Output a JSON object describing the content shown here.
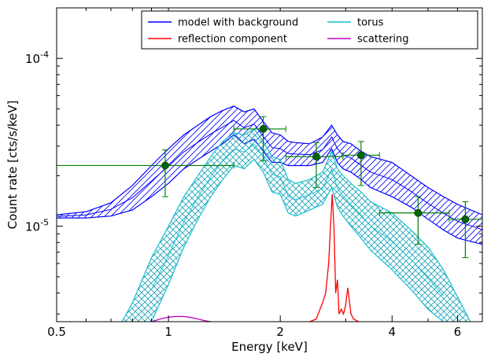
{
  "chart_data": {
    "type": "line",
    "xlabel": "Energy [keV]",
    "ylabel": "Count rate [cts/s/keV]",
    "x_scale": "log",
    "y_scale": "log",
    "xlim": [
      0.5,
      7.0
    ],
    "ylim": [
      2.7e-06,
      0.0002
    ],
    "x_ticks": [
      {
        "value": 0.5,
        "label": "0.5"
      },
      {
        "value": 1,
        "label": "1"
      },
      {
        "value": 2,
        "label": "2"
      },
      {
        "value": 4,
        "label": "4"
      },
      {
        "value": 6,
        "label": "6"
      }
    ],
    "y_ticks": [
      {
        "value": 1e-05,
        "base": "10",
        "exp": "-5"
      },
      {
        "value": 0.0001,
        "base": "10",
        "exp": "-4"
      }
    ],
    "grid": false,
    "legend": {
      "placement": "top-right",
      "columns": 2,
      "entries": [
        {
          "key": "model",
          "label": "model with background",
          "color": "#0000ff"
        },
        {
          "key": "torus",
          "label": "torus",
          "color": "#17becf"
        },
        {
          "key": "reflection",
          "label": "reflection component",
          "color": "#ff0000"
        },
        {
          "key": "scattering",
          "label": "scattering",
          "color": "#c000c0"
        }
      ]
    },
    "series": [
      {
        "key": "model",
        "color": "#0000ff",
        "hatch": "diagonal",
        "x": [
          0.5,
          0.6,
          0.7,
          0.8,
          0.9,
          1.0,
          1.1,
          1.2,
          1.3,
          1.4,
          1.5,
          1.6,
          1.7,
          1.8,
          1.9,
          2.0,
          2.1,
          2.2,
          2.4,
          2.6,
          2.75,
          2.85,
          2.95,
          3.1,
          3.3,
          3.5,
          4.0,
          4.5,
          5.0,
          5.5,
          6.0,
          7.0
        ],
        "upper": [
          1.17e-05,
          1.22e-05,
          1.38e-05,
          1.75e-05,
          2.3e-05,
          2.9e-05,
          3.5e-05,
          4e-05,
          4.5e-05,
          4.9e-05,
          5.2e-05,
          4.8e-05,
          5e-05,
          4.2e-05,
          3.6e-05,
          3.5e-05,
          3.2e-05,
          3.15e-05,
          3.1e-05,
          3.4e-05,
          4e-05,
          3.5e-05,
          3.2e-05,
          3.1e-05,
          2.8e-05,
          2.6e-05,
          2.4e-05,
          2e-05,
          1.7e-05,
          1.5e-05,
          1.35e-05,
          1.17e-05
        ],
        "lower": [
          1.12e-05,
          1.12e-05,
          1.15e-05,
          1.25e-05,
          1.5e-05,
          1.8e-05,
          2.2e-05,
          2.5e-05,
          2.8e-05,
          3.1e-05,
          3.5e-05,
          3.1e-05,
          3.3e-05,
          2.8e-05,
          2.4e-05,
          2.4e-05,
          2.3e-05,
          2.3e-05,
          2.3e-05,
          2.4e-05,
          2.9e-05,
          2.4e-05,
          2.2e-05,
          2.1e-05,
          1.9e-05,
          1.7e-05,
          1.5e-05,
          1.3e-05,
          1.1e-05,
          9.5e-06,
          8.5e-06,
          7.8e-06
        ]
      },
      {
        "key": "torus",
        "color": "#17becf",
        "hatch": "cross",
        "x": [
          0.75,
          0.8,
          0.9,
          1.0,
          1.1,
          1.2,
          1.3,
          1.4,
          1.5,
          1.6,
          1.7,
          1.8,
          1.9,
          2.0,
          2.1,
          2.2,
          2.4,
          2.6,
          2.75,
          2.85,
          2.95,
          3.1,
          3.3,
          3.5,
          4.0,
          4.5,
          5.0,
          5.5,
          6.0,
          6.5
        ],
        "upper": [
          2.7e-06,
          3.5e-06,
          6.5e-06,
          1e-05,
          1.5e-05,
          2e-05,
          2.6e-05,
          3.2e-05,
          3.6e-05,
          3.5e-05,
          3.8e-05,
          3.2e-05,
          2.6e-05,
          2.5e-05,
          1.9e-05,
          1.8e-05,
          1.9e-05,
          2.1e-05,
          2.8e-05,
          2.2e-05,
          2e-05,
          1.8e-05,
          1.6e-05,
          1.4e-05,
          1.2e-05,
          9.5e-06,
          7.5e-06,
          5.5e-06,
          3.8e-06,
          2.7e-06
        ],
        "lower": [
          null,
          null,
          2.7e-06,
          4.5e-06,
          7.5e-06,
          1.1e-05,
          1.5e-05,
          1.9e-05,
          2.3e-05,
          2.2e-05,
          2.5e-05,
          2.1e-05,
          1.6e-05,
          1.55e-05,
          1.2e-05,
          1.15e-05,
          1.25e-05,
          1.35e-05,
          1.7e-05,
          1.3e-05,
          1.15e-05,
          1e-05,
          8.5e-06,
          7.2e-06,
          5.5e-06,
          4.2e-06,
          3.2e-06,
          2.7e-06,
          null,
          null
        ]
      },
      {
        "key": "reflection",
        "color": "#ff0000",
        "x": [
          2.4,
          2.5,
          2.6,
          2.65,
          2.7,
          2.73,
          2.76,
          2.79,
          2.82,
          2.85,
          2.88,
          2.92,
          2.96,
          3.0,
          3.04,
          3.07,
          3.1,
          3.15,
          3.25
        ],
        "y": [
          2.7e-06,
          2.8e-06,
          3.5e-06,
          4e-06,
          6e-06,
          1e-05,
          1.55e-05,
          1e-05,
          4e-06,
          4.8e-06,
          3e-06,
          3.2e-06,
          3e-06,
          3.4e-06,
          4.3e-06,
          3.6e-06,
          3e-06,
          2.8e-06,
          2.7e-06
        ]
      },
      {
        "key": "scattering",
        "color": "#c000c0",
        "x": [
          0.9,
          0.95,
          1.0,
          1.05,
          1.1,
          1.15,
          1.2,
          1.25,
          1.3
        ],
        "y": [
          2.7e-06,
          2.8e-06,
          2.87e-06,
          2.9e-06,
          2.9e-06,
          2.86e-06,
          2.8e-06,
          2.74e-06,
          2.7e-06
        ]
      }
    ],
    "data_points": {
      "color": "#008000",
      "marker_fill": "#006400",
      "points": [
        {
          "x": 0.98,
          "y": 2.3e-05,
          "xlo": 0.5,
          "xhi": 1.5,
          "ylo": 1.5e-05,
          "yhi": 2.85e-05
        },
        {
          "x": 1.8,
          "y": 3.8e-05,
          "xlo": 1.5,
          "xhi": 2.07,
          "ylo": 2.45e-05,
          "yhi": 4.5e-05
        },
        {
          "x": 2.5,
          "y": 2.6e-05,
          "xlo": 2.07,
          "xhi": 2.95,
          "ylo": 1.7e-05,
          "yhi": 3.15e-05
        },
        {
          "x": 3.3,
          "y": 2.65e-05,
          "xlo": 2.95,
          "xhi": 3.7,
          "ylo": 1.75e-05,
          "yhi": 3.2e-05
        },
        {
          "x": 4.7,
          "y": 1.2e-05,
          "xlo": 3.7,
          "xhi": 5.7,
          "ylo": 7.8e-06,
          "yhi": 1.5e-05
        },
        {
          "x": 6.3,
          "y": 1.1e-05,
          "xlo": 5.7,
          "xhi": 7.0,
          "ylo": 6.5e-06,
          "yhi": 1.4e-05
        }
      ]
    }
  }
}
